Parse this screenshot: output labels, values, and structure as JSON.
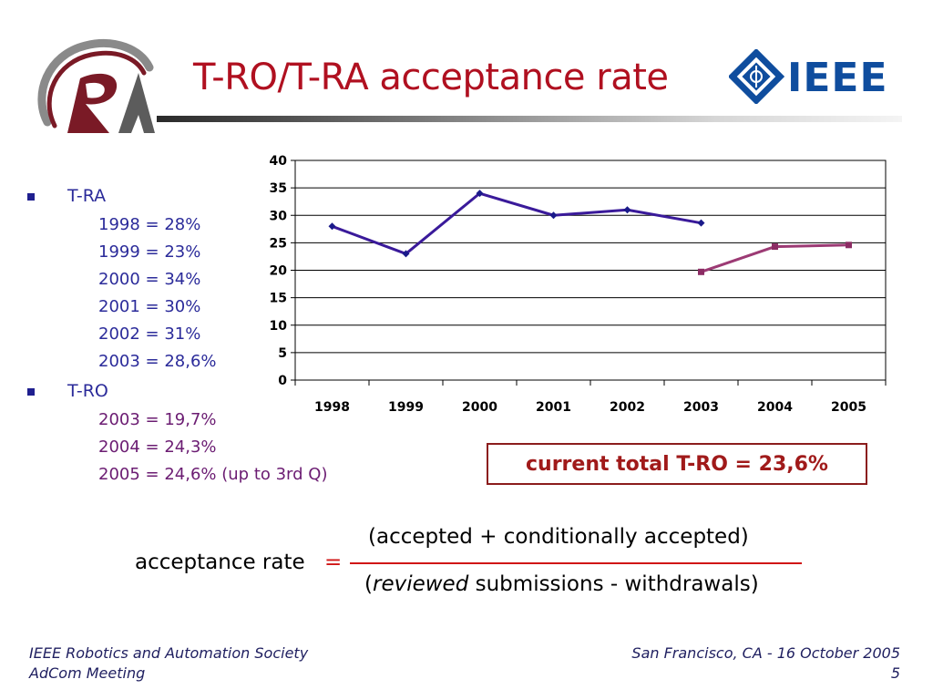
{
  "slide": {
    "title": "T-RO/T-RA acceptance rate"
  },
  "logos": {
    "left": "robotics-automation-society-logo",
    "right_text": "IEEE"
  },
  "bullets": {
    "tra": {
      "label": "T-RA",
      "items": [
        "1998 = 28%",
        "1999 = 23%",
        "2000 = 34%",
        "2001 = 30%",
        "2002 = 31%",
        "2003 = 28,6%"
      ]
    },
    "tro": {
      "label": "T-RO",
      "items": [
        "2003 = 19,7%",
        "2004 = 24,3%",
        "2005 = 24,6% (up to 3rd Q)"
      ]
    }
  },
  "chart_data": {
    "type": "line",
    "categories": [
      "1998",
      "1999",
      "2000",
      "2001",
      "2002",
      "2003",
      "2004",
      "2005"
    ],
    "ylim": [
      0,
      40
    ],
    "yticks": [
      0,
      5,
      10,
      15,
      20,
      25,
      30,
      35,
      40
    ],
    "grid": true,
    "legend": "none",
    "series": [
      {
        "key": "tra",
        "values": [
          28,
          23,
          34,
          30,
          31,
          28.6,
          null,
          null
        ],
        "color": "#3a1a9a",
        "marker": "diamond"
      },
      {
        "key": "tro",
        "values": [
          null,
          null,
          null,
          null,
          null,
          19.7,
          24.3,
          24.6
        ],
        "color": "#9c3a74",
        "marker": "square"
      }
    ]
  },
  "total_box": {
    "text": "current total T-RO = 23,6%"
  },
  "formula": {
    "label": "acceptance rate",
    "equals": "=",
    "numerator": "(accepted + conditionally accepted)",
    "denominator_open": "(",
    "denominator_italic": "reviewed",
    "denominator_rest": " submissions - withdrawals)"
  },
  "footer": {
    "left_line1": "IEEE Robotics and Automation Society",
    "left_line2": "AdCom Meeting",
    "right_line1": "San Francisco, CA - 16 October 2005",
    "right_line2": "5"
  },
  "colors": {
    "title": "#b01020",
    "tra_text": "#2b2b9a",
    "tro_text": "#6b1c72",
    "accent_red": "#d01515",
    "ieee_blue": "#0f4d9e"
  }
}
